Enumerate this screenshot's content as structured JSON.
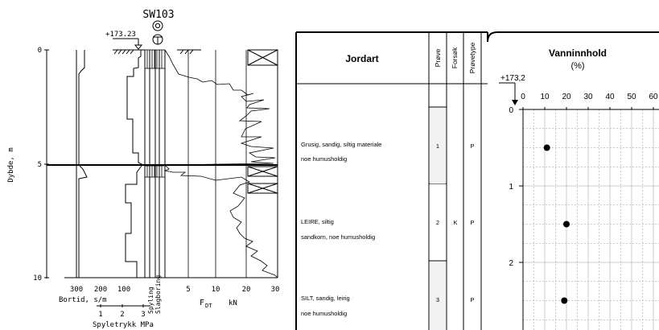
{
  "left_log": {
    "borehole_id": "SW103",
    "ground_level": "+173.23",
    "depth_axis_label": "Dybde, m",
    "depth_ticks": [
      "0",
      "5",
      "10"
    ],
    "bortid_ticks": [
      "300",
      "200",
      "100"
    ],
    "bortid_label": "Bortid, s/m",
    "spyletrykk_ticks": [
      "1",
      "2",
      "3"
    ],
    "spyletrykk_label": "Spyletrykk  MPa",
    "spyling_label": "Spyling",
    "slagboring_label": "Slagboring",
    "fdt_ticks": [
      "5",
      "10",
      "20",
      "30"
    ],
    "fdt_label_main": "F",
    "fdt_label_sub": "DT",
    "fdt_unit": "kN"
  },
  "right_log": {
    "headers": {
      "jordart": "Jordart",
      "prove": "Prøve",
      "forsok": "Forsøk",
      "provetype": "Prøvetype"
    },
    "chart_title": "Vanninnhold",
    "chart_unit": "(%)",
    "elevation": "+173,2",
    "layers": [
      {
        "line1": "Grusig, sandig, siltig materiale",
        "line2": "noe humusholdig",
        "prove": "1",
        "forsok": "",
        "provetype": "P"
      },
      {
        "line1": "LEIRE, siltig",
        "line2": "sandkorn, noe humusholdig",
        "prove": "2",
        "forsok": "K",
        "provetype": "P"
      },
      {
        "line1": "SILT, sandig, leirig",
        "line2": "noe humusholdig",
        "prove": "3",
        "forsok": "",
        "provetype": "P"
      }
    ]
  },
  "chart_data": {
    "type": "scatter",
    "title": "Vanninnhold",
    "unit": "(%)",
    "x_ticks": [
      "0",
      "10",
      "20",
      "30",
      "40",
      "50",
      "60"
    ],
    "y_ticks": [
      "0",
      "1",
      "2"
    ],
    "xlim": [
      0,
      60
    ],
    "ylim": [
      0,
      2.75
    ],
    "points": [
      {
        "x": 11,
        "y": 0.5
      },
      {
        "x": 20,
        "y": 1.5
      },
      {
        "x": 19,
        "y": 2.5
      }
    ]
  }
}
